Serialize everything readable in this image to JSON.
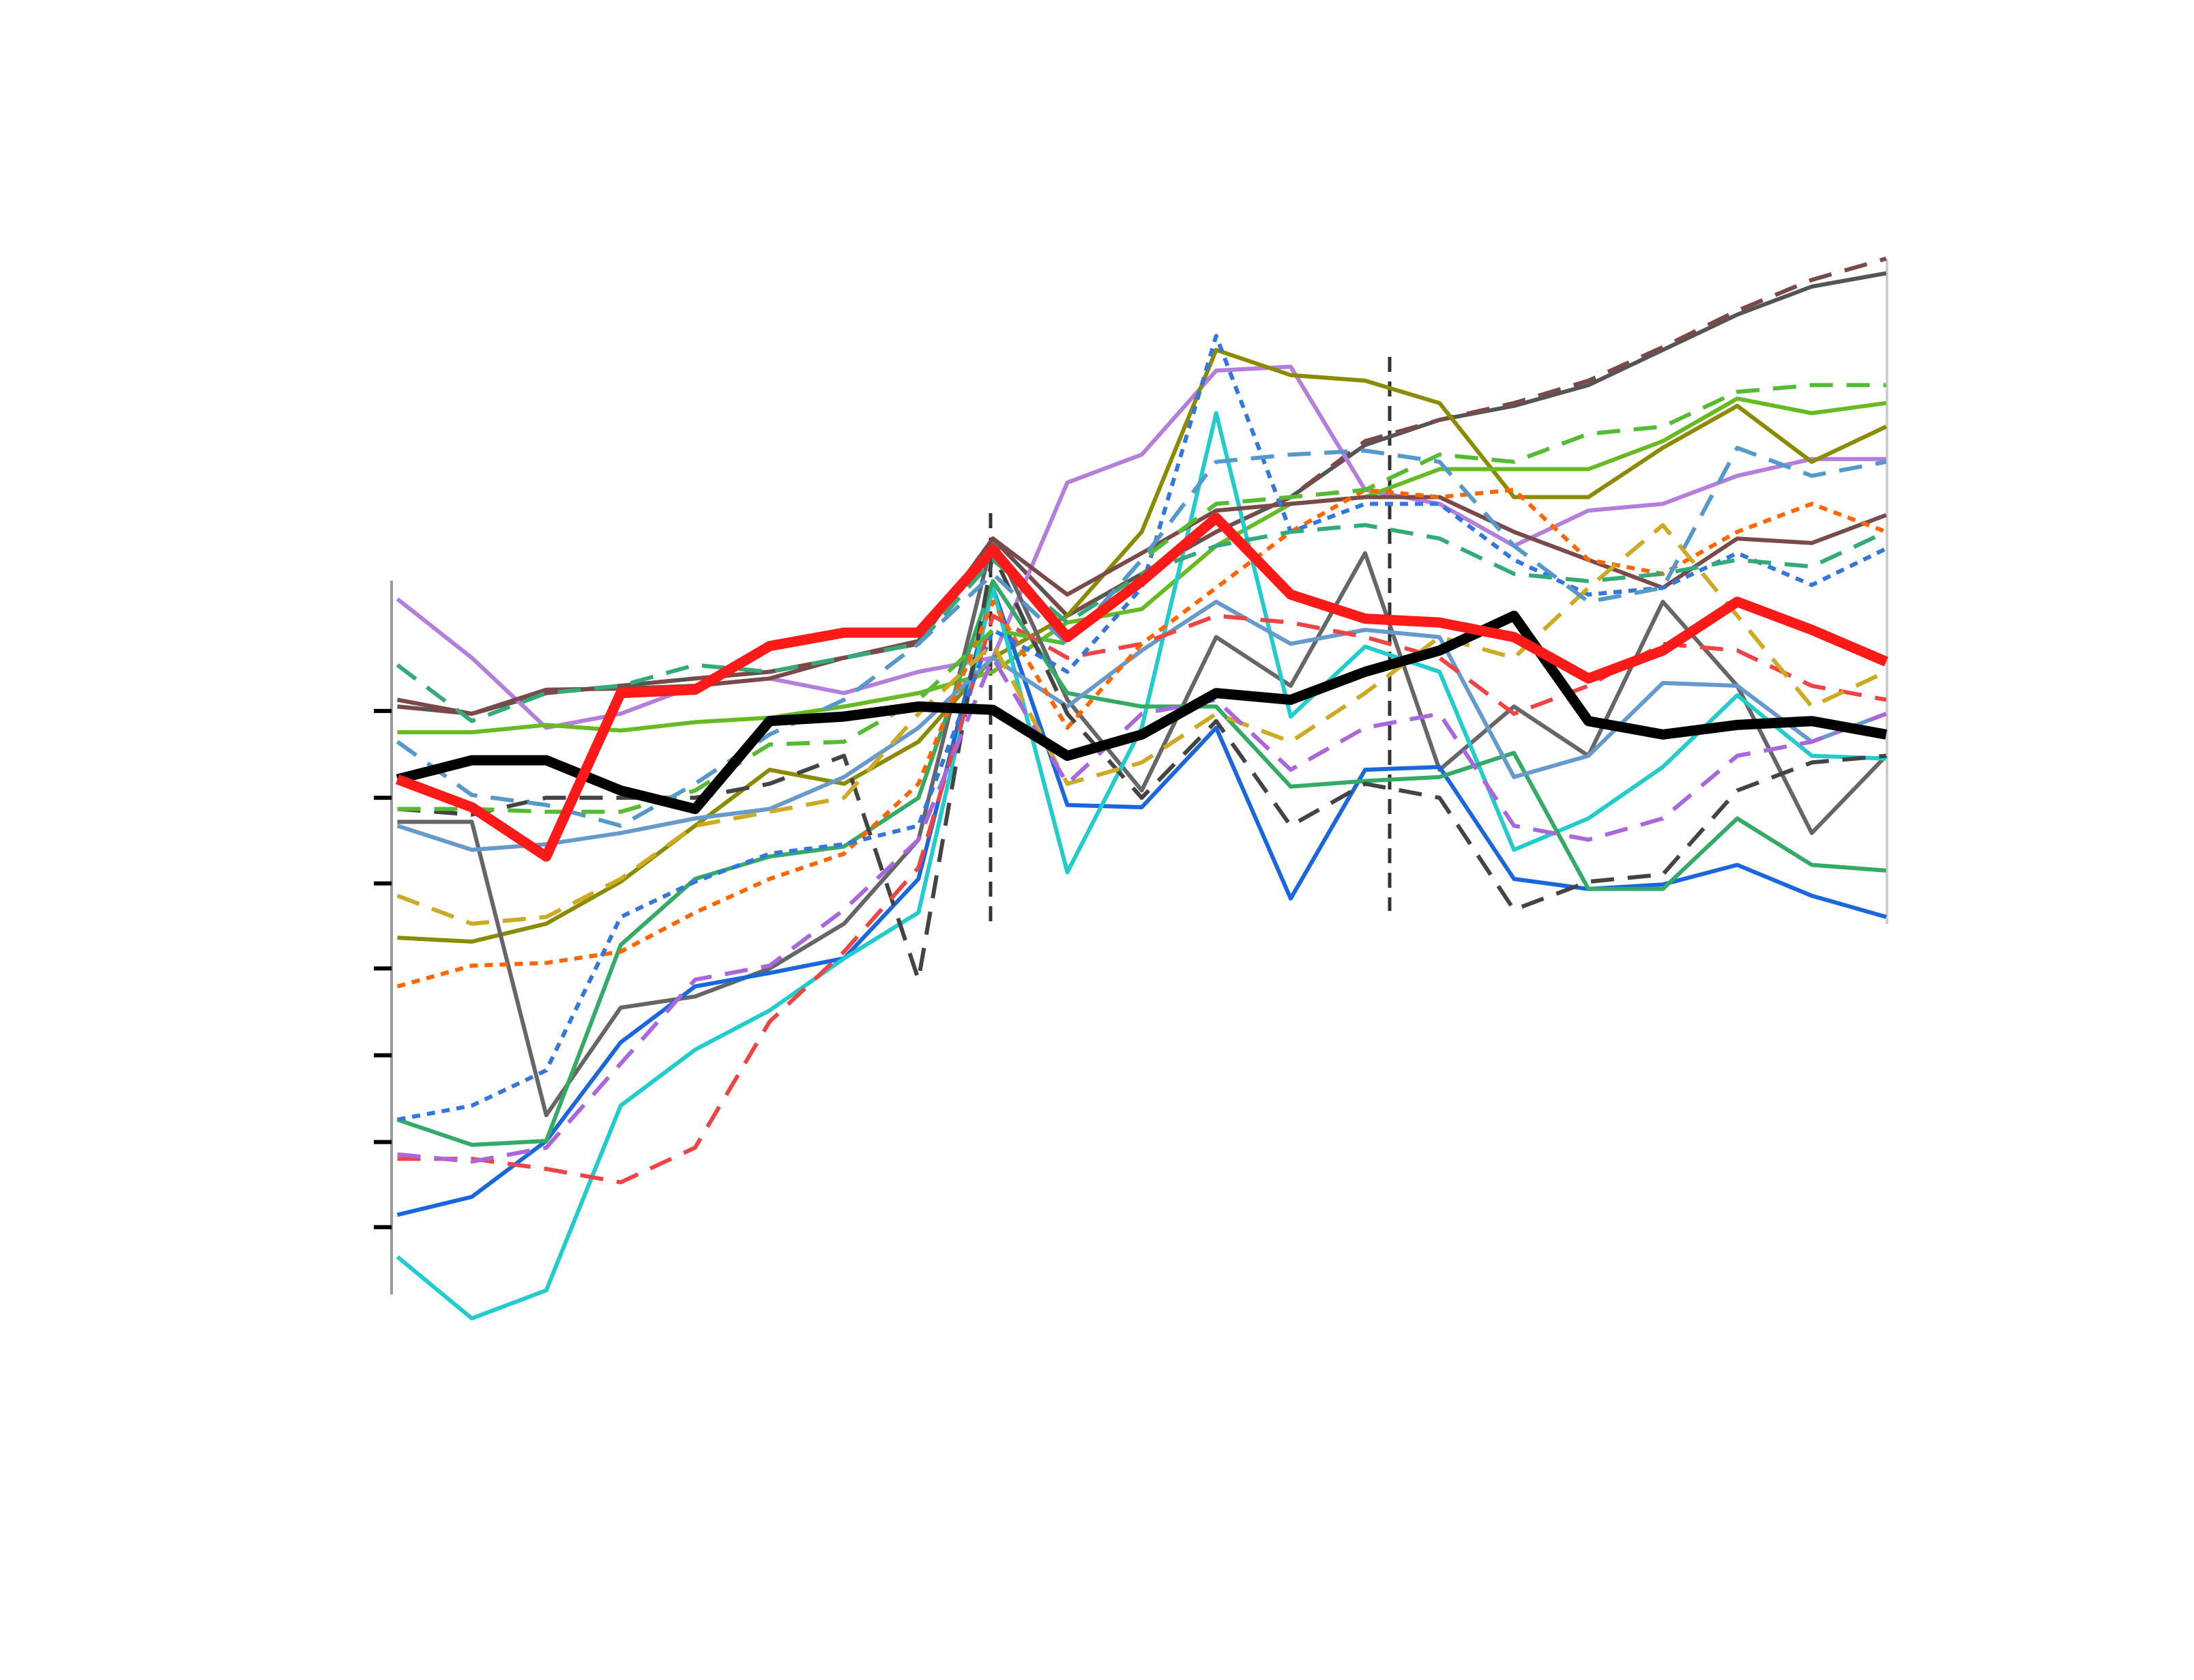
{
  "chart_data": {
    "type": "line",
    "categories": [
      null,
      null,
      null,
      null,
      null,
      null,
      null,
      null,
      null,
      null,
      null,
      null,
      null,
      null,
      null,
      null,
      null,
      null,
      null,
      null,
      null
    ],
    "ylim": [
      0,
      100
    ],
    "yticks": [
      56.5,
      48.75,
      41.1,
      33.5,
      25.75,
      18,
      10.4
    ],
    "series": [
      {
        "color": "#555555",
        "style": "solid",
        "values": [
          56.9,
          56.25,
          58.1,
          58.75,
          59.4,
          60,
          61.25,
          62.5,
          71.9,
          65,
          68.75,
          72.5,
          75.6,
          80.25,
          82.5,
          83.75,
          85.6,
          88.75,
          91.9,
          94.4,
          95.6
        ]
      },
      {
        "color": "#7a4a4a",
        "style": "dashed",
        "values": [
          56.9,
          56.25,
          58.1,
          58.75,
          59.4,
          60,
          61.25,
          62.5,
          71.9,
          65,
          68.75,
          72.5,
          75.6,
          80.6,
          82.5,
          84,
          86,
          89,
          92.25,
          95,
          96.9
        ]
      },
      {
        "color": "#b57edc",
        "style": "solid",
        "values": [
          66.5,
          61.25,
          55,
          56.25,
          58.75,
          59.4,
          58.1,
          60,
          61.25,
          76.9,
          79.4,
          86.9,
          87.25,
          76.25,
          75,
          71.25,
          74.4,
          75,
          77.5,
          79,
          79
        ]
      },
      {
        "color": "#8b8b00",
        "style": "solid",
        "values": [
          36.25,
          35.9,
          37.5,
          41.25,
          46.25,
          51.25,
          50,
          53.75,
          61.25,
          65,
          72.5,
          88.75,
          86.5,
          86,
          84,
          75.6,
          75.6,
          80,
          83.75,
          78.75,
          81.9
        ]
      },
      {
        "color": "#66bb22",
        "style": "solid",
        "values": [
          54.6,
          54.6,
          55.25,
          54.75,
          55.5,
          55.9,
          56.9,
          58.1,
          60,
          64.4,
          65.6,
          71.25,
          75,
          75.6,
          78.1,
          78.1,
          78.1,
          80.6,
          84.4,
          83.1,
          84
        ]
      },
      {
        "color": "#666666",
        "style": "solid",
        "values": [
          46.6,
          46.6,
          20.4,
          30,
          31,
          33.5,
          37.5,
          45,
          71.9,
          57.5,
          49.4,
          63.1,
          58.75,
          70.6,
          51.25,
          56.9,
          52.5,
          66.25,
          58.75,
          45.6,
          52.5
        ]
      },
      {
        "color": "#1a66dd",
        "style": "solid",
        "values": [
          11.5,
          13.1,
          18.1,
          26.9,
          31.9,
          33.1,
          34.4,
          41.5,
          67.5,
          48.1,
          47.9,
          55,
          39.75,
          51.25,
          51.5,
          41.5,
          40.6,
          41,
          42.75,
          40,
          38.1
        ]
      },
      {
        "color": "#22cccc",
        "style": "solid",
        "values": [
          7.75,
          2.25,
          4.75,
          21.25,
          26.25,
          29.75,
          34.4,
          38.5,
          67.5,
          42.1,
          55,
          83.1,
          56,
          62.25,
          60,
          44.1,
          46.9,
          51.5,
          57.9,
          52.5,
          52.25
        ]
      },
      {
        "color": "#33aa66",
        "style": "solid",
        "values": [
          20,
          17.75,
          18.1,
          35.6,
          41.5,
          43.5,
          44.4,
          48.75,
          68.1,
          58.1,
          56.9,
          56.9,
          49.75,
          50.25,
          50.6,
          52.75,
          40.6,
          40.6,
          46.9,
          42.75,
          42.25
        ]
      },
      {
        "color": "#6699cc",
        "style": "solid",
        "values": [
          46.25,
          44.1,
          44.6,
          45.6,
          46.9,
          47.75,
          50.6,
          55,
          61.25,
          56.9,
          61.9,
          66.25,
          62.5,
          63.75,
          63.1,
          50.6,
          52.5,
          59,
          58.75,
          53.75,
          56.25
        ]
      },
      {
        "color": "#7a4a4a",
        "style": "solid",
        "values": [
          57.5,
          56.25,
          58.4,
          58.5,
          58.75,
          59.4,
          61.25,
          62.75,
          71.9,
          66.9,
          70.6,
          74.4,
          75,
          75.6,
          75.6,
          72.5,
          70,
          67.5,
          71.9,
          71.5,
          74
        ]
      },
      {
        "color": "#444444",
        "style": "dashed",
        "values": [
          47.75,
          47.25,
          48.75,
          48.75,
          48.75,
          50,
          52.5,
          32.5,
          70.6,
          56.25,
          48.75,
          55.6,
          46.25,
          50,
          48.75,
          38.75,
          41.25,
          41.9,
          49.4,
          51.9,
          52.5
        ]
      },
      {
        "color": "#ee4444",
        "style": "dashed",
        "values": [
          16.5,
          16.5,
          15.6,
          14.4,
          17.5,
          28.75,
          35,
          42.5,
          65,
          61.25,
          62.5,
          65,
          64.4,
          63.1,
          61.25,
          56.25,
          58.75,
          62.5,
          61.9,
          58.75,
          57.5
        ]
      },
      {
        "color": "#ff6600",
        "style": "dotted",
        "values": [
          31.9,
          33.75,
          34,
          35,
          38.5,
          41.5,
          43.75,
          50,
          66.25,
          55,
          62.5,
          67.5,
          72.5,
          76.25,
          75.6,
          76.25,
          70,
          68.75,
          72.5,
          75,
          72.5
        ]
      },
      {
        "color": "#3377dd",
        "style": "dotted",
        "values": [
          20,
          21.25,
          24.4,
          38.1,
          41.25,
          43.75,
          44.6,
          46.25,
          63.75,
          60,
          67.5,
          90,
          72.5,
          75,
          75,
          70,
          66.9,
          67.5,
          70.6,
          67.75,
          71
        ]
      },
      {
        "color": "#ccaa22",
        "style": "dashed",
        "values": [
          40,
          37.5,
          38.1,
          41.5,
          46.25,
          47.5,
          48.75,
          56.25,
          62.5,
          50,
          51.9,
          56.25,
          53.75,
          58.1,
          63.1,
          61.25,
          67.5,
          73.1,
          65,
          56.9,
          60
        ]
      },
      {
        "color": "#55bb33",
        "style": "dashed",
        "values": [
          47.75,
          47.75,
          47.5,
          47.5,
          49.4,
          53.5,
          53.75,
          57.5,
          63.75,
          62.5,
          70,
          75,
          75.6,
          76.25,
          79.4,
          78.75,
          81.25,
          81.9,
          85,
          85.6,
          85.6
        ]
      },
      {
        "color": "#aa66dd",
        "style": "dashed",
        "values": [
          16.9,
          16.25,
          17.5,
          25,
          32.5,
          33.75,
          38.75,
          45,
          61.25,
          50,
          56.25,
          57.5,
          51.25,
          55,
          56.25,
          46.25,
          45,
          46.9,
          52.5,
          53.75,
          56.25
        ]
      },
      {
        "color": "#33aa77",
        "style": "dashed",
        "values": [
          60.6,
          55.6,
          58.1,
          58.75,
          60.6,
          60,
          61.25,
          62.5,
          70,
          64.4,
          68.75,
          71.25,
          72.5,
          73.1,
          71.9,
          68.75,
          68.1,
          68.75,
          70,
          69.4,
          72.5
        ]
      },
      {
        "color": "#5599cc",
        "style": "dashed",
        "values": [
          53.75,
          49,
          48.1,
          46.25,
          50,
          54.4,
          57.5,
          62.5,
          68.75,
          62.5,
          70,
          78.75,
          79.4,
          79.75,
          78.75,
          71.25,
          66.25,
          67.5,
          80,
          77.5,
          78.75
        ]
      },
      {
        "color": "#000000",
        "style": "bold",
        "values": [
          50.4,
          52.1,
          52.1,
          49.4,
          47.75,
          55.6,
          56,
          56.9,
          56.6,
          52.5,
          54.4,
          58.1,
          57.5,
          60,
          61.9,
          65,
          55.6,
          54.4,
          55.25,
          55.6,
          54.4
        ]
      },
      {
        "color": "#ff1a1a",
        "style": "bold",
        "values": [
          50.4,
          47.9,
          43.5,
          58.1,
          58.4,
          62.3,
          63.5,
          63.5,
          70.9,
          63.1,
          68.1,
          73.75,
          66.9,
          64.75,
          64.4,
          63.1,
          59.4,
          61.9,
          66.25,
          63.75,
          60.9
        ]
      }
    ]
  }
}
